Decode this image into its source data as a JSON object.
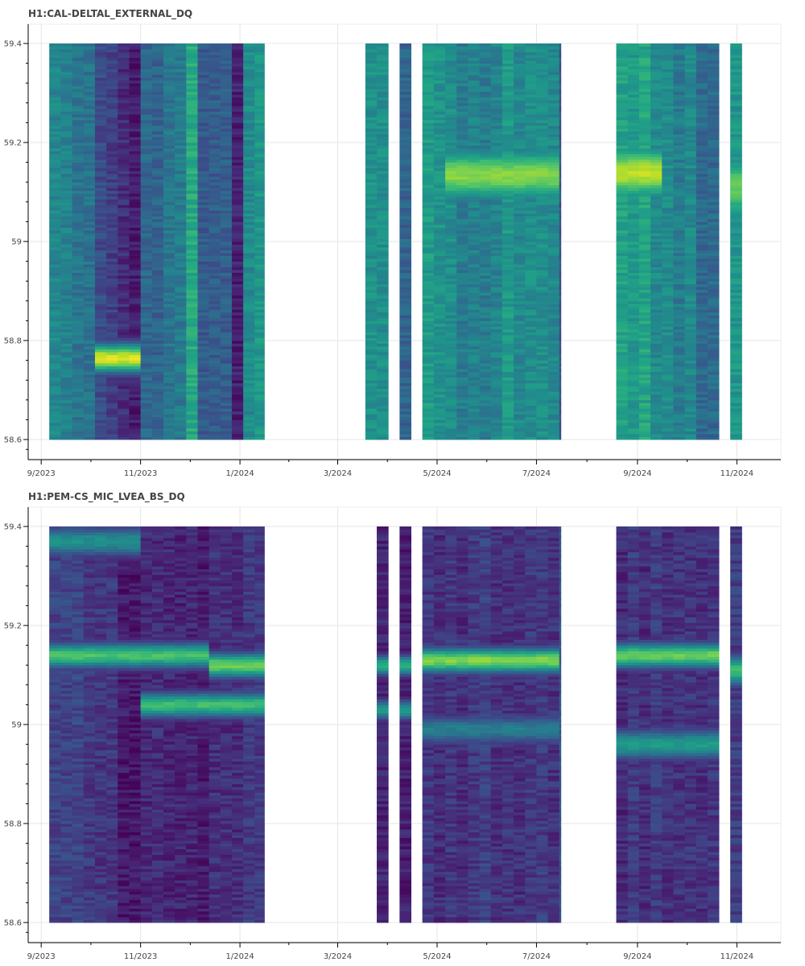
{
  "chart_data": [
    {
      "type": "heatmap",
      "title": "H1:CAL-DELTAL_EXTERNAL_DQ",
      "xlabel": "",
      "ylabel": "",
      "x_ticks": [
        "9/2023",
        "11/2023",
        "1/2024",
        "3/2024",
        "5/2024",
        "7/2024",
        "9/2024",
        "11/2024"
      ],
      "y_ticks": [
        "58.6",
        "58.8",
        "59",
        "59.2",
        "59.4"
      ],
      "ylim": [
        58.6,
        59.4
      ],
      "y_minor_step": 0.04,
      "xlim": [
        "2023-08-24",
        "2024-11-28"
      ],
      "colormap": "viridis",
      "background": "#2e9b8a",
      "grid": true,
      "data_blocks": [
        {
          "start": "2023-09-06",
          "end": "2024-01-16"
        },
        {
          "start": "2024-03-18",
          "end": "2024-04-01"
        },
        {
          "start": "2024-04-08",
          "end": "2024-04-15"
        },
        {
          "start": "2024-04-22",
          "end": "2024-07-16"
        },
        {
          "start": "2024-08-19",
          "end": "2024-10-21"
        },
        {
          "start": "2024-10-28",
          "end": "2024-11-04"
        }
      ],
      "column_levels": [
        {
          "start": "2023-09-06",
          "end": "2023-09-20",
          "level": 0.45
        },
        {
          "start": "2023-09-20",
          "end": "2023-10-04",
          "level": 0.38
        },
        {
          "start": "2023-10-04",
          "end": "2023-10-18",
          "level": 0.22
        },
        {
          "start": "2023-10-18",
          "end": "2023-11-01",
          "level": 0.1
        },
        {
          "start": "2023-11-01",
          "end": "2023-11-15",
          "level": 0.3
        },
        {
          "start": "2023-11-15",
          "end": "2023-11-29",
          "level": 0.4
        },
        {
          "start": "2023-11-29",
          "end": "2023-12-06",
          "level": 0.58
        },
        {
          "start": "2023-12-06",
          "end": "2023-12-27",
          "level": 0.28
        },
        {
          "start": "2023-12-27",
          "end": "2024-01-03",
          "level": 0.12
        },
        {
          "start": "2024-01-03",
          "end": "2024-01-16",
          "level": 0.52
        },
        {
          "start": "2024-03-18",
          "end": "2024-04-01",
          "level": 0.5
        },
        {
          "start": "2024-04-08",
          "end": "2024-04-15",
          "level": 0.35
        },
        {
          "start": "2024-04-22",
          "end": "2024-05-13",
          "level": 0.52
        },
        {
          "start": "2024-05-13",
          "end": "2024-06-10",
          "level": 0.45
        },
        {
          "start": "2024-06-10",
          "end": "2024-07-16",
          "level": 0.5
        },
        {
          "start": "2024-08-19",
          "end": "2024-09-09",
          "level": 0.55
        },
        {
          "start": "2024-09-09",
          "end": "2024-10-07",
          "level": 0.45
        },
        {
          "start": "2024-10-07",
          "end": "2024-10-21",
          "level": 0.38
        },
        {
          "start": "2024-10-28",
          "end": "2024-11-04",
          "level": 0.5
        }
      ],
      "hotspots": [
        {
          "start": "2023-10-04",
          "end": "2023-11-01",
          "freq": 58.765,
          "width": 0.03,
          "peak": 0.95
        },
        {
          "start": "2024-05-06",
          "end": "2024-07-16",
          "freq": 59.135,
          "width": 0.06,
          "peak": 0.82
        },
        {
          "start": "2024-08-19",
          "end": "2024-09-16",
          "freq": 59.14,
          "width": 0.06,
          "peak": 0.9
        },
        {
          "start": "2024-10-28",
          "end": "2024-11-04",
          "freq": 59.11,
          "width": 0.08,
          "peak": 0.75
        }
      ]
    },
    {
      "type": "heatmap",
      "title": "H1:PEM-CS_MIC_LVEA_BS_DQ",
      "xlabel": "",
      "ylabel": "",
      "x_ticks": [
        "9/2023",
        "11/2023",
        "1/2024",
        "3/2024",
        "5/2024",
        "7/2024",
        "9/2024",
        "11/2024"
      ],
      "y_ticks": [
        "58.6",
        "58.8",
        "59",
        "59.2",
        "59.4"
      ],
      "ylim": [
        58.6,
        59.4
      ],
      "y_minor_step": 0.04,
      "xlim": [
        "2023-08-24",
        "2024-11-28"
      ],
      "colormap": "viridis",
      "background": "#3b3f88",
      "grid": true,
      "data_blocks": [
        {
          "start": "2023-09-06",
          "end": "2024-01-16"
        },
        {
          "start": "2024-03-25",
          "end": "2024-04-01"
        },
        {
          "start": "2024-04-08",
          "end": "2024-04-15"
        },
        {
          "start": "2024-04-22",
          "end": "2024-07-16"
        },
        {
          "start": "2024-08-19",
          "end": "2024-10-21"
        },
        {
          "start": "2024-10-28",
          "end": "2024-11-04"
        }
      ],
      "column_levels": [
        {
          "start": "2023-09-06",
          "end": "2023-10-18",
          "level": 0.18
        },
        {
          "start": "2023-10-18",
          "end": "2023-12-20",
          "level": 0.1
        },
        {
          "start": "2023-12-20",
          "end": "2024-01-16",
          "level": 0.14
        },
        {
          "start": "2024-03-25",
          "end": "2024-04-15",
          "level": 0.12
        },
        {
          "start": "2024-04-22",
          "end": "2024-07-16",
          "level": 0.16
        },
        {
          "start": "2024-08-19",
          "end": "2024-10-21",
          "level": 0.15
        },
        {
          "start": "2024-10-28",
          "end": "2024-11-04",
          "level": 0.2
        }
      ],
      "hotspots": [
        {
          "start": "2023-09-06",
          "end": "2023-11-01",
          "freq": 59.37,
          "width": 0.03,
          "peak": 0.5
        },
        {
          "start": "2023-09-06",
          "end": "2023-12-13",
          "freq": 59.14,
          "width": 0.025,
          "peak": 0.72
        },
        {
          "start": "2023-12-13",
          "end": "2024-01-16",
          "freq": 59.12,
          "width": 0.025,
          "peak": 0.78
        },
        {
          "start": "2023-11-01",
          "end": "2024-01-16",
          "freq": 59.04,
          "width": 0.025,
          "peak": 0.7
        },
        {
          "start": "2024-03-25",
          "end": "2024-04-15",
          "freq": 59.12,
          "width": 0.02,
          "peak": 0.65
        },
        {
          "start": "2024-03-25",
          "end": "2024-04-15",
          "freq": 59.03,
          "width": 0.02,
          "peak": 0.55
        },
        {
          "start": "2024-04-22",
          "end": "2024-07-16",
          "freq": 59.13,
          "width": 0.025,
          "peak": 0.82
        },
        {
          "start": "2024-04-22",
          "end": "2024-07-16",
          "freq": 58.99,
          "width": 0.03,
          "peak": 0.42
        },
        {
          "start": "2024-08-19",
          "end": "2024-10-21",
          "freq": 59.14,
          "width": 0.025,
          "peak": 0.78
        },
        {
          "start": "2024-08-19",
          "end": "2024-10-21",
          "freq": 58.96,
          "width": 0.03,
          "peak": 0.55
        },
        {
          "start": "2024-10-28",
          "end": "2024-11-04",
          "freq": 59.11,
          "width": 0.03,
          "peak": 0.7
        }
      ]
    }
  ]
}
